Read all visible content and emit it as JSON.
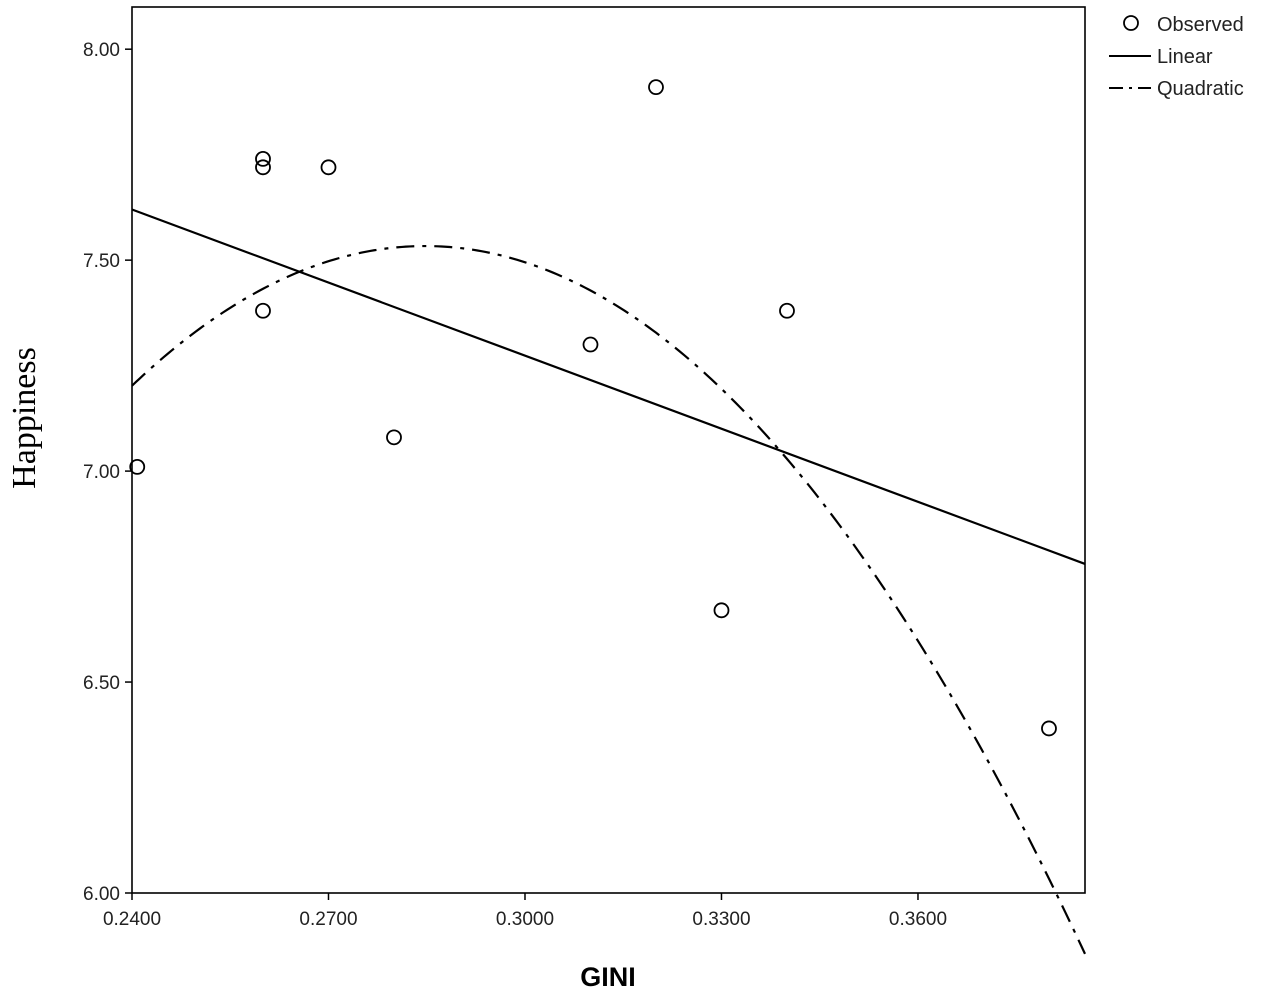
{
  "chart_data": {
    "type": "scatter",
    "title": "",
    "xlabel": "GINI",
    "ylabel": "Happiness",
    "xlim": [
      0.24,
      0.3855
    ],
    "ylim": [
      6.0,
      8.1
    ],
    "x_ticks": [
      {
        "value": 0.24,
        "label": "0.2400"
      },
      {
        "value": 0.27,
        "label": "0.2700"
      },
      {
        "value": 0.3,
        "label": "0.3000"
      },
      {
        "value": 0.33,
        "label": "0.3300"
      },
      {
        "value": 0.36,
        "label": "0.3600"
      }
    ],
    "y_ticks": [
      {
        "value": 6.0,
        "label": "6.00"
      },
      {
        "value": 6.5,
        "label": "6.50"
      },
      {
        "value": 7.0,
        "label": "7.00"
      },
      {
        "value": 7.5,
        "label": "7.50"
      },
      {
        "value": 8.0,
        "label": "8.00"
      }
    ],
    "grid": false,
    "legend_position": "right-top outside",
    "series": [
      {
        "name": "Observed",
        "kind": "points",
        "points": [
          {
            "x": 0.2408,
            "y": 7.01
          },
          {
            "x": 0.26,
            "y": 7.74
          },
          {
            "x": 0.26,
            "y": 7.72
          },
          {
            "x": 0.26,
            "y": 7.38
          },
          {
            "x": 0.27,
            "y": 7.72
          },
          {
            "x": 0.28,
            "y": 7.08
          },
          {
            "x": 0.31,
            "y": 7.3
          },
          {
            "x": 0.32,
            "y": 7.91
          },
          {
            "x": 0.33,
            "y": 6.67
          },
          {
            "x": 0.34,
            "y": 7.38
          },
          {
            "x": 0.38,
            "y": 6.39
          }
        ]
      },
      {
        "name": "Linear",
        "kind": "line",
        "style": "solid",
        "points": [
          {
            "x": 0.24,
            "y": 7.62
          },
          {
            "x": 0.3855,
            "y": 6.78
          }
        ]
      },
      {
        "name": "Quadratic",
        "kind": "curve",
        "style": "dash-dot",
        "coefficients": {
          "a": -165.3,
          "b": 94.14,
          "c": -5.87
        }
      }
    ]
  }
}
